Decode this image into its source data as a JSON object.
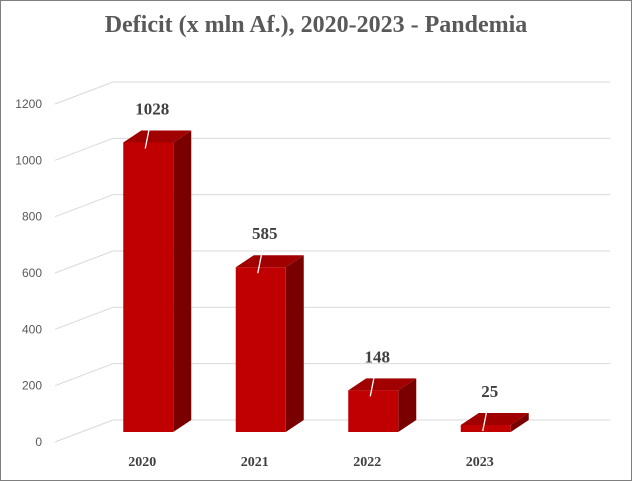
{
  "chart_data": {
    "type": "bar",
    "title": "Deficit (x mln Af.), 2020-2023 - Pandemia",
    "categories": [
      "2020",
      "2021",
      "2022",
      "2023"
    ],
    "values": [
      1028,
      585,
      148,
      25
    ],
    "data_labels": [
      "1028",
      "585",
      "148",
      "25"
    ],
    "ylim": [
      0,
      1200
    ],
    "yticks": [
      0,
      200,
      400,
      600,
      800,
      1000,
      1200
    ],
    "grid": true,
    "style": "3d-column",
    "colors": {
      "front": "#c00000",
      "side": "#7a0000",
      "top": "#a00000",
      "grid": "#d9d9d9"
    }
  }
}
